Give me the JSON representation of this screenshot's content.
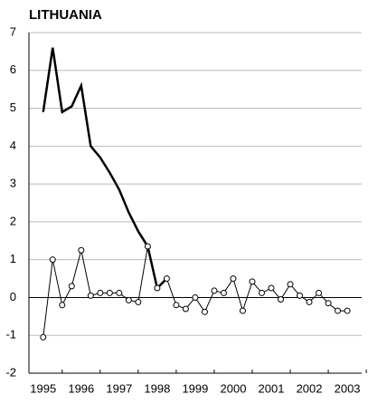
{
  "chart_data": {
    "type": "line",
    "title": "LITHUANIA",
    "categories": [
      "1995",
      null,
      null,
      null,
      "1996",
      null,
      null,
      null,
      "1997",
      null,
      null,
      null,
      "1998",
      null,
      null,
      null,
      "1999",
      null,
      null,
      null,
      "2000",
      null,
      null,
      null,
      "2001",
      null,
      null,
      null,
      "2002",
      null,
      null,
      null,
      "2003"
    ],
    "series": [
      {
        "color": "#000000",
        "values": [
          4.9,
          6.6,
          4.9,
          5.05,
          5.6,
          4.0,
          3.7,
          3.3,
          2.85,
          2.25,
          1.75,
          1.35,
          0.25,
          0.5,
          null,
          null,
          null,
          null,
          null,
          null,
          null,
          null,
          null,
          null,
          null,
          null,
          null,
          null,
          null,
          null,
          null,
          null,
          null
        ]
      },
      {
        "color": "#000000",
        "values": [
          -1.05,
          1.0,
          -0.2,
          0.3,
          1.25,
          0.05,
          0.12,
          0.12,
          0.12,
          -0.07,
          -0.12,
          1.35,
          0.25,
          0.5,
          -0.2,
          -0.3,
          0.0,
          -0.38,
          0.18,
          0.12,
          0.5,
          -0.35,
          0.42,
          0.12,
          0.25,
          -0.05,
          0.35,
          0.05,
          -0.12,
          0.12,
          -0.15,
          -0.35,
          -0.35
        ]
      }
    ],
    "ylim": [
      -2,
      7
    ],
    "yticks": [
      -2,
      -1,
      0,
      1,
      2,
      3,
      4,
      5,
      6,
      7
    ],
    "grid": true
  }
}
